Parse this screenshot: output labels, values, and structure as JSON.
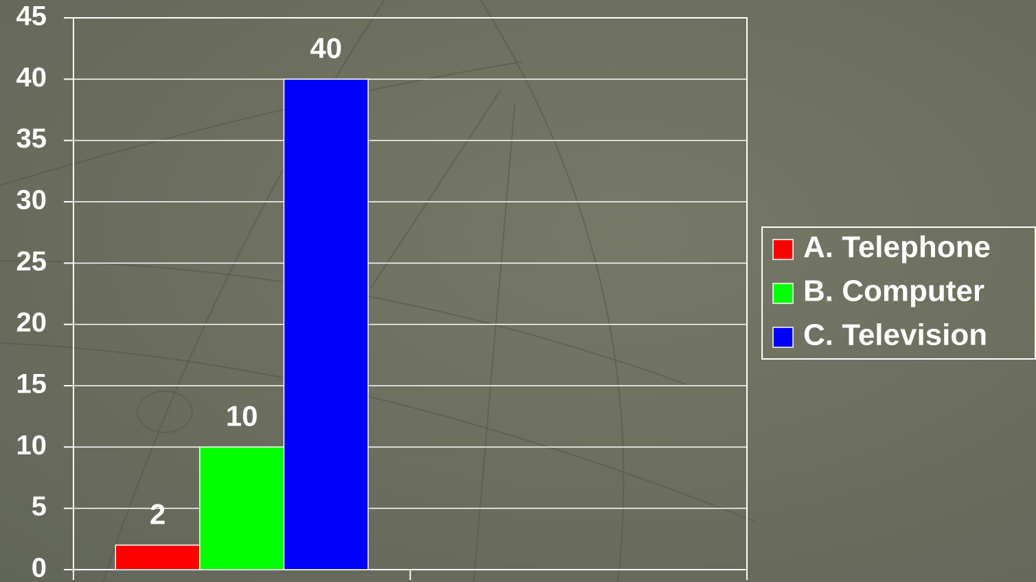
{
  "chart_data": {
    "type": "bar",
    "categories": [
      null,
      null
    ],
    "series": [
      {
        "name": "A. Telephone",
        "color": "#ff0000",
        "values": [
          2,
          null
        ]
      },
      {
        "name": "B. Computer",
        "color": "#00ff00",
        "values": [
          10,
          null
        ]
      },
      {
        "name": "C. Television",
        "color": "#0000ff",
        "values": [
          40,
          null
        ]
      }
    ],
    "ylim": [
      0,
      45
    ],
    "yticks": [
      0,
      5,
      10,
      15,
      20,
      25,
      30,
      35,
      40,
      45
    ],
    "grid": true,
    "legend": "right"
  }
}
